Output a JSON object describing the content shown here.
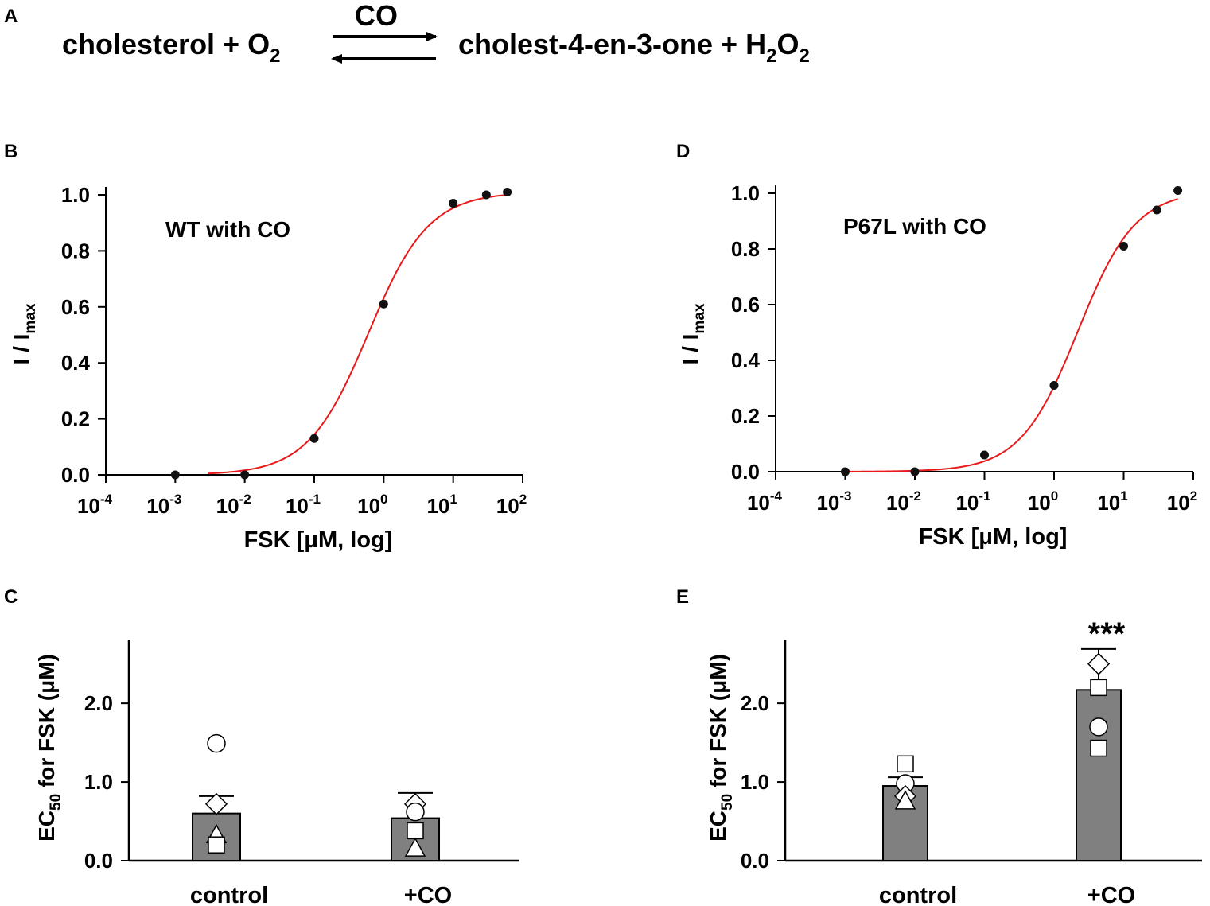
{
  "panels": {
    "A": "A",
    "B": "B",
    "C": "C",
    "D": "D",
    "E": "E"
  },
  "reaction": {
    "reactant": "cholesterol + O",
    "reactant_sub": "2",
    "catalyst": "CO",
    "product_part1": "cholest-4-en-3-one + H",
    "product_sub1": "2",
    "product_part2": "O",
    "product_sub2": "2"
  },
  "colors": {
    "fit_curve": "#e8191a",
    "points": "#111111",
    "bar_fill": "#808080",
    "marker_fill": "#ffffff"
  },
  "chart_data": [
    {
      "panel": "B",
      "type": "scatter",
      "annotation": "WT with CO",
      "xlabel": "FSK [μM, log]",
      "ylabel_main": "I / I",
      "ylabel_sub": "max",
      "x_scale": "log",
      "xlim": [
        0.0001,
        100
      ],
      "ylim": [
        0,
        1.0
      ],
      "x_ticks": [
        {
          "base": "10",
          "exp": "-4"
        },
        {
          "base": "10",
          "exp": "-3"
        },
        {
          "base": "10",
          "exp": "-2"
        },
        {
          "base": "10",
          "exp": "-1"
        },
        {
          "base": "10",
          "exp": "0"
        },
        {
          "base": "10",
          "exp": "1"
        },
        {
          "base": "10",
          "exp": "2"
        }
      ],
      "y_ticks": [
        "0.0",
        "0.2",
        "0.4",
        "0.6",
        "0.8",
        "1.0"
      ],
      "x": [
        0.001,
        0.01,
        0.1,
        1,
        10,
        30,
        60
      ],
      "y": [
        0.0,
        0.0,
        0.13,
        0.61,
        0.97,
        1.0,
        1.01
      ],
      "fit": {
        "ec50": 0.6,
        "hill": 1.0,
        "x_start": 0.003
      }
    },
    {
      "panel": "D",
      "type": "scatter",
      "annotation": "P67L with CO",
      "xlabel": "FSK [μM, log]",
      "ylabel_main": "I / I",
      "ylabel_sub": "max",
      "x_scale": "log",
      "xlim": [
        0.0001,
        100
      ],
      "ylim": [
        0,
        1.0
      ],
      "x_ticks": [
        {
          "base": "10",
          "exp": "-4"
        },
        {
          "base": "10",
          "exp": "-3"
        },
        {
          "base": "10",
          "exp": "-2"
        },
        {
          "base": "10",
          "exp": "-1"
        },
        {
          "base": "10",
          "exp": "0"
        },
        {
          "base": "10",
          "exp": "1"
        },
        {
          "base": "10",
          "exp": "2"
        }
      ],
      "y_ticks": [
        "0.0",
        "0.2",
        "0.4",
        "0.6",
        "0.8",
        "1.0"
      ],
      "x": [
        0.001,
        0.01,
        0.1,
        1,
        10,
        30,
        60
      ],
      "y": [
        0.0,
        0.0,
        0.06,
        0.31,
        0.81,
        0.94,
        1.01
      ],
      "fit": {
        "ec50": 2.2,
        "hill": 1.05,
        "x_start": 0.001
      }
    },
    {
      "panel": "C",
      "type": "bar",
      "ylabel_main": "EC",
      "ylabel_sub": "50",
      "ylabel_rest": " for FSK (μM)",
      "categories": [
        "control",
        "+CO"
      ],
      "values": [
        0.6,
        0.54
      ],
      "errors": [
        0.22,
        0.32
      ],
      "ylim": [
        0,
        2.8
      ],
      "y_ticks": [
        "0.0",
        "1.0",
        "2.0"
      ],
      "significance": [
        "",
        ""
      ],
      "points": [
        [
          {
            "shape": "circle",
            "value": 1.49
          },
          {
            "shape": "diamond",
            "value": 0.72
          },
          {
            "shape": "triangle",
            "value": 0.33
          },
          {
            "shape": "square",
            "value": 0.2
          }
        ],
        [
          {
            "shape": "diamond",
            "value": 0.72
          },
          {
            "shape": "square",
            "value": 0.38
          },
          {
            "shape": "triangle",
            "value": 0.16
          },
          {
            "shape": "circle",
            "value": 0.62
          }
        ]
      ]
    },
    {
      "panel": "E",
      "type": "bar",
      "ylabel_main": "EC",
      "ylabel_sub": "50",
      "ylabel_rest": " for FSK (μM)",
      "categories": [
        "control",
        "+CO"
      ],
      "values": [
        0.95,
        2.17
      ],
      "errors": [
        0.11,
        0.52
      ],
      "ylim": [
        0,
        2.8
      ],
      "y_ticks": [
        "0.0",
        "1.0",
        "2.0"
      ],
      "significance": [
        "",
        "***"
      ],
      "points": [
        [
          {
            "shape": "square",
            "value": 1.23
          },
          {
            "shape": "circle",
            "value": 0.98
          },
          {
            "shape": "diamond",
            "value": 0.82
          },
          {
            "shape": "triangle",
            "value": 0.76
          }
        ],
        [
          {
            "shape": "diamond",
            "value": 2.5
          },
          {
            "shape": "square",
            "value": 2.2
          },
          {
            "shape": "circle",
            "value": 1.7
          },
          {
            "shape": "square",
            "value": 1.43
          }
        ]
      ]
    }
  ]
}
